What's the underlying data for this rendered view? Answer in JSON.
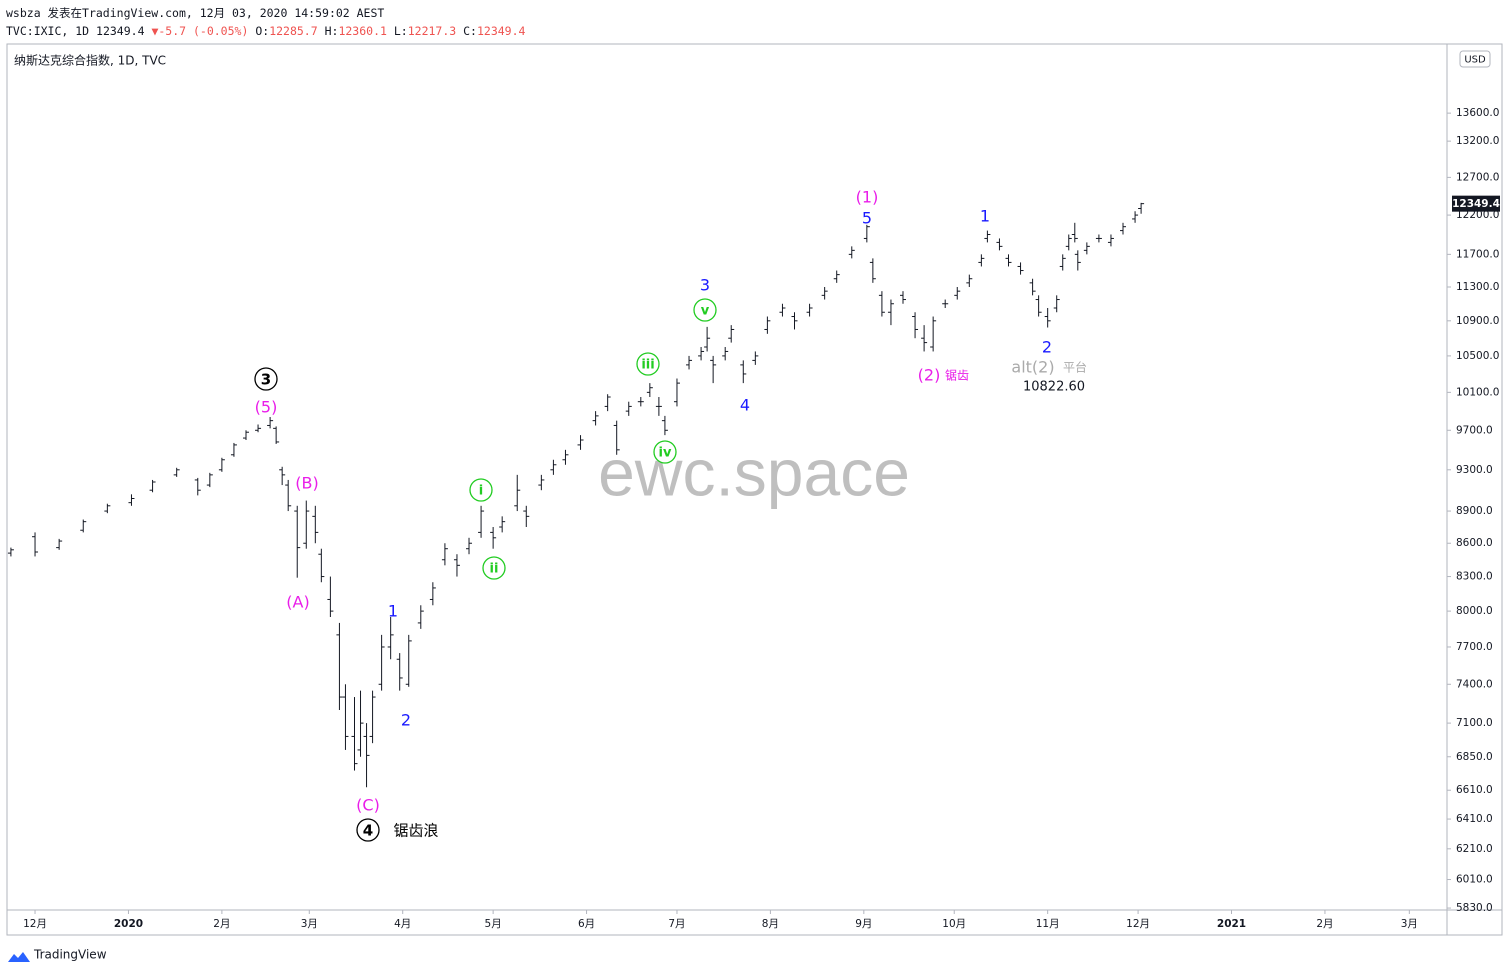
{
  "header": {
    "author_line": "wsbza 发表在TradingView.com, 12月 03, 2020 14:59:02 AEST",
    "symbol": "TVC:IXIC, 1D",
    "arrow": "▼",
    "change": "-5.7 (-0.05%)",
    "o_label": "O:",
    "h_label": "H:",
    "l_label": "L:",
    "c_label": "C:"
  },
  "footer": {
    "brand": "TradingView"
  },
  "chart_data": {
    "type": "ohlc",
    "title": "纳斯达克综合指数, 1D, TVC",
    "currency": "USD",
    "watermark": "ewc.space",
    "log_scale": true,
    "grid": false,
    "color": "#131722",
    "x": [
      -8,
      0,
      8,
      16,
      24,
      32,
      39,
      47,
      54,
      58,
      62,
      66,
      70,
      74,
      78,
      80,
      82,
      84,
      87,
      90,
      93,
      95,
      98,
      101,
      103,
      106,
      108,
      110,
      112,
      115,
      118,
      121,
      124,
      128,
      132,
      136,
      140,
      144,
      148,
      152,
      155,
      160,
      163,
      168,
      172,
      176,
      181,
      186,
      190,
      193,
      197,
      201,
      204,
      207,
      209,
      213,
      217,
      221,
      223,
      225,
      229,
      231,
      235,
      239,
      243,
      248,
      252,
      257,
      262,
      266,
      271,
      276,
      278,
      281,
      284,
      288,
      292,
      295,
      298,
      302,
      306,
      310,
      314,
      316,
      320,
      323,
      327,
      331,
      333,
      336,
      339,
      341,
      343,
      345,
      346,
      349,
      353,
      357,
      361,
      365,
      367
    ],
    "open": [
      8510,
      8660,
      8560,
      8720,
      8900,
      8980,
      9100,
      9250,
      9200,
      9150,
      9300,
      9450,
      9620,
      9700,
      9750,
      9720,
      9300,
      9150,
      8900,
      8600,
      8850,
      8500,
      8100,
      7800,
      7300,
      7000,
      6900,
      7000,
      7000,
      7400,
      7700,
      7600,
      7400,
      7900,
      8100,
      8450,
      8450,
      8550,
      8700,
      8700,
      8750,
      8950,
      8900,
      9150,
      9300,
      9400,
      9550,
      9800,
      9950,
      9750,
      9900,
      10000,
      10100,
      9950,
      9800,
      10000,
      10400,
      10500,
      10600,
      10450,
      10500,
      10700,
      10400,
      10450,
      10800,
      11000,
      10950,
      11000,
      11200,
      11400,
      11700,
      11900,
      11600,
      11200,
      11000,
      11200,
      10950,
      10700,
      10600,
      11100,
      11200,
      11350,
      11600,
      11900,
      11850,
      11650,
      11550,
      11350,
      11150,
      10950,
      11050,
      11550,
      11800,
      11950,
      11700,
      11750,
      11900,
      11850,
      12000,
      12150,
      12285.7
    ],
    "high": [
      8560,
      8700,
      8640,
      8820,
      8970,
      9060,
      9200,
      9320,
      9220,
      9270,
      9420,
      9570,
      9700,
      9760,
      9838,
      9740,
      9330,
      9200,
      8950,
      9000,
      8950,
      8550,
      8300,
      7900,
      7400,
      7300,
      7350,
      7100,
      7350,
      7800,
      7950,
      7650,
      7800,
      8050,
      8250,
      8600,
      8500,
      8650,
      8950,
      8750,
      8850,
      9250,
      8950,
      9250,
      9400,
      9500,
      9650,
      9900,
      10080,
      9800,
      10000,
      10050,
      10200,
      10050,
      9850,
      10250,
      10500,
      10600,
      10830,
      10500,
      10600,
      10850,
      10450,
      10550,
      10950,
      11100,
      11000,
      11100,
      11300,
      11500,
      11800,
      12074,
      11650,
      11250,
      11150,
      11250,
      11000,
      10850,
      10950,
      11150,
      11300,
      11450,
      11700,
      12000,
      11900,
      11700,
      11600,
      11400,
      11200,
      11050,
      11200,
      11700,
      11950,
      12100,
      11750,
      11850,
      11950,
      11950,
      12100,
      12250,
      12360.1
    ],
    "low": [
      8480,
      8480,
      8540,
      8700,
      8880,
      8950,
      9080,
      9230,
      9050,
      9130,
      9280,
      9430,
      9600,
      9680,
      9720,
      9560,
      9150,
      8900,
      8290,
      8550,
      8600,
      8250,
      7950,
      7200,
      6900,
      6750,
      6850,
      6631,
      6950,
      7350,
      7600,
      7350,
      7380,
      7850,
      8050,
      8400,
      8300,
      8500,
      8650,
      8550,
      8700,
      8900,
      8750,
      9100,
      9250,
      9350,
      9500,
      9750,
      9900,
      9450,
      9850,
      9950,
      10050,
      9850,
      9650,
      9950,
      10350,
      10450,
      10550,
      10200,
      10450,
      10650,
      10200,
      10400,
      10750,
      10950,
      10800,
      10950,
      11150,
      11350,
      11650,
      11850,
      11350,
      10950,
      10850,
      11100,
      10700,
      10550,
      10550,
      11050,
      11150,
      11300,
      11550,
      11850,
      11750,
      11550,
      11450,
      11200,
      10950,
      10822.6,
      11000,
      11500,
      11750,
      11850,
      11500,
      11700,
      11850,
      11800,
      11950,
      12100,
      12217.3
    ],
    "close": [
      8540,
      8520,
      8620,
      8800,
      8950,
      9020,
      9180,
      9300,
      9100,
      9250,
      9400,
      9550,
      9680,
      9720,
      9800,
      9580,
      9250,
      8950,
      8560,
      8900,
      8700,
      8300,
      8000,
      7300,
      7000,
      6800,
      7100,
      6860,
      7300,
      7700,
      7800,
      7450,
      7750,
      8000,
      8200,
      8550,
      8400,
      8600,
      8900,
      8650,
      8800,
      9100,
      8850,
      9200,
      9350,
      9450,
      9600,
      9850,
      10050,
      9500,
      9950,
      10000,
      10150,
      9950,
      9700,
      10200,
      10450,
      10550,
      10700,
      10400,
      10550,
      10800,
      10300,
      10500,
      10900,
      11050,
      10900,
      11050,
      11250,
      11450,
      11750,
      12050,
      11400,
      11000,
      11100,
      11150,
      10800,
      10650,
      10900,
      11100,
      11250,
      11400,
      11650,
      11950,
      11800,
      11600,
      11500,
      11250,
      11000,
      10900,
      11150,
      11650,
      11900,
      11900,
      11600,
      11800,
      11900,
      11900,
      12050,
      12200,
      12349.4
    ],
    "xlim": [
      -9.3,
      468.5
    ],
    "xticks": [
      {
        "value": 0,
        "label": "12月"
      },
      {
        "value": 31,
        "label": "2020"
      },
      {
        "value": 62,
        "label": "2月"
      },
      {
        "value": 91,
        "label": "3月"
      },
      {
        "value": 122,
        "label": "4月"
      },
      {
        "value": 152,
        "label": "5月"
      },
      {
        "value": 183,
        "label": "6月"
      },
      {
        "value": 213,
        "label": "7月"
      },
      {
        "value": 244,
        "label": "8月"
      },
      {
        "value": 275,
        "label": "9月"
      },
      {
        "value": 305,
        "label": "10月"
      },
      {
        "value": 336,
        "label": "11月"
      },
      {
        "value": 366,
        "label": "12月"
      },
      {
        "value": 397,
        "label": "2021"
      },
      {
        "value": 428,
        "label": "2月"
      },
      {
        "value": 456,
        "label": "3月"
      }
    ],
    "ylim": [
      5818,
      14624
    ],
    "yticks": [
      {
        "value": 13600,
        "label": "13600.0"
      },
      {
        "value": 13200,
        "label": "13200.0"
      },
      {
        "value": 12700,
        "label": "12700.0"
      },
      {
        "value": 12200,
        "label": "12200.0"
      },
      {
        "value": 11700,
        "label": "11700.0"
      },
      {
        "value": 11300,
        "label": "11300.0"
      },
      {
        "value": 10900,
        "label": "10900.0"
      },
      {
        "value": 10500,
        "label": "10500.0"
      },
      {
        "value": 10100,
        "label": "10100.0"
      },
      {
        "value": 9700,
        "label": "9700.0"
      },
      {
        "value": 9300,
        "label": "9300.0"
      },
      {
        "value": 8900,
        "label": "8900.0"
      },
      {
        "value": 8600,
        "label": "8600.0"
      },
      {
        "value": 8300,
        "label": "8300.0"
      },
      {
        "value": 8000,
        "label": "8000.0"
      },
      {
        "value": 7700,
        "label": "7700.0"
      },
      {
        "value": 7400,
        "label": "7400.0"
      },
      {
        "value": 7100,
        "label": "7100.0"
      },
      {
        "value": 6850,
        "label": "6850.0"
      },
      {
        "value": 6610,
        "label": "6610.0"
      },
      {
        "value": 6410,
        "label": "6410.0"
      },
      {
        "value": 6210,
        "label": "6210.0"
      },
      {
        "value": 6010,
        "label": "6010.0"
      },
      {
        "value": 5830,
        "label": "5830.0"
      }
    ],
    "annotations": [
      {
        "text": "3",
        "color": "#000000",
        "circled": true
      },
      {
        "text": "(5)",
        "color": "#e91ee9"
      },
      {
        "text": "(B)",
        "color": "#e91ee9"
      },
      {
        "text": "(A)",
        "color": "#e91ee9"
      },
      {
        "text": "(C)",
        "color": "#e91ee9"
      },
      {
        "text": "4",
        "color": "#000000",
        "circled": true
      },
      {
        "text": "锯齿浪",
        "color": "#000000"
      },
      {
        "text": "1",
        "color": "#1a1aff"
      },
      {
        "text": "2",
        "color": "#1a1aff"
      },
      {
        "text": "i",
        "color": "#22cc22",
        "circled": true
      },
      {
        "text": "ii",
        "color": "#22cc22",
        "circled": true
      },
      {
        "text": "iii",
        "color": "#22cc22",
        "circled": true
      },
      {
        "text": "iv",
        "color": "#22cc22",
        "circled": true
      },
      {
        "text": "v",
        "color": "#22cc22",
        "circled": true
      },
      {
        "text": "3",
        "color": "#1a1aff"
      },
      {
        "text": "4",
        "color": "#1a1aff"
      },
      {
        "text": "5",
        "color": "#1a1aff"
      },
      {
        "text": "(1)",
        "color": "#e91ee9"
      },
      {
        "text": "(2)",
        "color": "#e91ee9"
      },
      {
        "text": "锯齿",
        "color": "#e91ee9"
      },
      {
        "text": "1",
        "color": "#1a1aff"
      },
      {
        "text": "2",
        "color": "#1a1aff"
      },
      {
        "text": "alt(2)",
        "color": "#aaaaaa"
      },
      {
        "text": "平台",
        "color": "#aaaaaa"
      },
      {
        "text": "10822.60",
        "color": "#131722"
      }
    ]
  }
}
